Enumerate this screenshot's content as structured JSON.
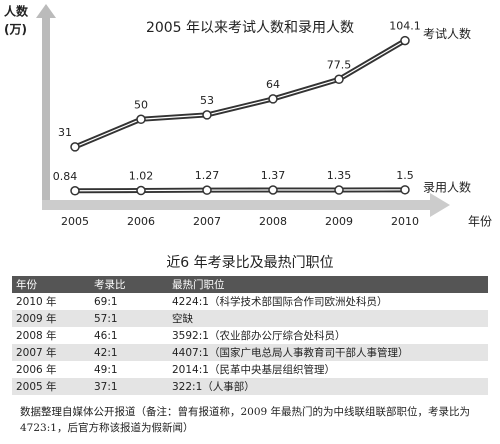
{
  "chart_data": {
    "type": "line",
    "title": "2005 年以来考试人数和录用人数",
    "y_label": "人数",
    "y_unit": "(万)",
    "x_label": "年份",
    "categories": [
      "2005",
      "2006",
      "2007",
      "2008",
      "2009",
      "2010"
    ],
    "series": [
      {
        "name": "考试人数",
        "color": "#333333",
        "values": [
          31,
          50,
          53,
          64,
          77.5,
          104.1
        ]
      },
      {
        "name": "录用人数",
        "color": "#333333",
        "values": [
          0.84,
          1.02,
          1.27,
          1.37,
          1.35,
          1.5
        ]
      }
    ],
    "ylim": [
      0,
      110
    ]
  },
  "table": {
    "title": "近6 年考录比及最热门职位",
    "header": [
      "年份",
      "考录比",
      "最热门职位"
    ],
    "rows": [
      [
        "2010 年",
        "69:1",
        "4224:1（科学技术部国际合作司欧洲处科员）"
      ],
      [
        "2009 年",
        "57:1",
        "空缺"
      ],
      [
        "2008 年",
        "46:1",
        "3592:1（农业部办公厅综合处科员）"
      ],
      [
        "2007 年",
        "42:1",
        "4407:1（国家广电总局人事教育司干部人事管理）"
      ],
      [
        "2006 年",
        "49:1",
        "2014:1（民革中央基层组织管理）"
      ],
      [
        "2005 年",
        "37:1",
        "322:1（人事部）"
      ]
    ]
  },
  "footnote": "数据整理自媒体公开报道（备注：曾有报道称，2009 年最热门的为中线联组联部职位，考录比为 4723:1，后官方称该报道为假新闻）"
}
